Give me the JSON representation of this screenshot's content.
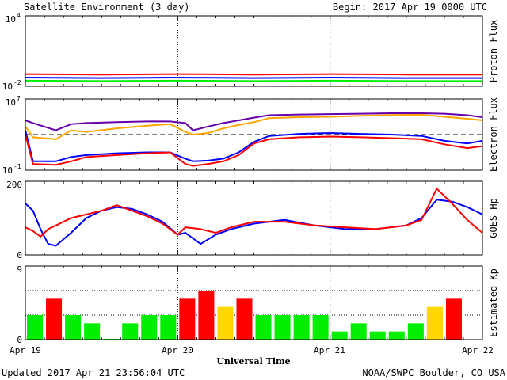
{
  "header": {
    "title": "Satellite Environment (3 day)",
    "begin": "Begin:  2017 Apr 19 0000 UTC"
  },
  "footer": {
    "updated": "Updated 2017 Apr 21 23:56:04 UTC",
    "credit": "NOAA/SWPC Boulder, CO USA"
  },
  "colors": {
    "red": "#ff0000",
    "blue": "#0000ff",
    "green": "#00ee00",
    "purple": "#6600aa",
    "orange": "#ffa500",
    "yellow": "#ffd700"
  },
  "chart_data": [
    {
      "type": "line",
      "ylabel": "Proton Flux",
      "yscale": "log",
      "ylim": [
        0.01,
        10000
      ],
      "yticks": [
        "10",
        "10"
      ],
      "ytick_exp": [
        "4",
        "-2"
      ],
      "threshold": 10,
      "xlim": [
        0,
        3
      ],
      "series": [
        {
          "color": "#ff0000",
          "x": [
            0,
            0.5,
            1,
            1.5,
            2,
            2.5,
            3
          ],
          "y": [
            0.11,
            0.1,
            0.11,
            0.1,
            0.11,
            0.1,
            0.1
          ]
        },
        {
          "color": "#0000ff",
          "x": [
            0,
            0.5,
            1,
            1.5,
            2,
            2.5,
            3
          ],
          "y": [
            0.055,
            0.05,
            0.055,
            0.05,
            0.055,
            0.05,
            0.05
          ]
        },
        {
          "color": "#00ee00",
          "x": [
            0,
            0.5,
            1,
            1.5,
            2,
            2.5,
            3
          ],
          "y": [
            0.03,
            0.028,
            0.03,
            0.028,
            0.03,
            0.028,
            0.028
          ]
        }
      ]
    },
    {
      "type": "line",
      "ylabel": "Electron Flux",
      "yscale": "log",
      "ylim": [
        0.1,
        10000000
      ],
      "yticks": [
        "10",
        "10"
      ],
      "ytick_exp": [
        "7",
        "-1"
      ],
      "threshold": 1000,
      "xlim": [
        0,
        3
      ],
      "series": [
        {
          "color": "#6600aa",
          "x": [
            0,
            0.05,
            0.2,
            0.3,
            0.4,
            0.6,
            0.8,
            0.95,
            1.05,
            1.1,
            1.2,
            1.3,
            1.4,
            1.5,
            1.6,
            1.8,
            2.0,
            2.2,
            2.4,
            2.6,
            2.75,
            2.9,
            3.0
          ],
          "y": [
            40000,
            20000,
            3000,
            15000,
            20000,
            25000,
            30000,
            30000,
            20000,
            3000,
            8000,
            20000,
            40000,
            80000,
            150000,
            180000,
            200000,
            220000,
            250000,
            250000,
            220000,
            150000,
            90000
          ]
        },
        {
          "color": "#ffa500",
          "x": [
            0,
            0.05,
            0.2,
            0.3,
            0.4,
            0.6,
            0.8,
            0.95,
            1.05,
            1.1,
            1.2,
            1.3,
            1.4,
            1.5,
            1.6,
            1.8,
            2.0,
            2.2,
            2.4,
            2.6,
            2.75,
            2.9,
            3.0
          ],
          "y": [
            8000,
            500,
            300,
            3000,
            2000,
            5000,
            10000,
            15000,
            2000,
            1000,
            1500,
            5000,
            12000,
            25000,
            70000,
            90000,
            100000,
            130000,
            160000,
            170000,
            100000,
            60000,
            40000
          ]
        },
        {
          "color": "#0000ff",
          "x": [
            0,
            0.05,
            0.2,
            0.3,
            0.4,
            0.6,
            0.8,
            0.95,
            1.05,
            1.1,
            1.2,
            1.3,
            1.4,
            1.5,
            1.6,
            1.8,
            2.0,
            2.2,
            2.4,
            2.6,
            2.75,
            2.9,
            3.0
          ],
          "y": [
            3000,
            1,
            1,
            3,
            5,
            8,
            10,
            10,
            2,
            1,
            1.2,
            2,
            10,
            150,
            700,
            1200,
            1500,
            1200,
            1000,
            700,
            200,
            100,
            200
          ]
        },
        {
          "color": "#ff0000",
          "x": [
            0,
            0.05,
            0.2,
            0.3,
            0.4,
            0.6,
            0.8,
            0.95,
            1.05,
            1.1,
            1.2,
            1.3,
            1.4,
            1.5,
            1.6,
            1.8,
            2.0,
            2.2,
            2.4,
            2.6,
            2.75,
            2.9,
            3.0
          ],
          "y": [
            1000,
            0.5,
            0.4,
            1,
            3,
            5,
            8,
            10,
            0.5,
            0.3,
            0.5,
            1,
            5,
            100,
            300,
            500,
            600,
            500,
            400,
            300,
            80,
            30,
            50
          ]
        }
      ]
    },
    {
      "type": "line",
      "ylabel": "GOES Hp",
      "ylim": [
        0,
        200
      ],
      "yticks": [
        "200",
        "0"
      ],
      "xlim": [
        0,
        3
      ],
      "series": [
        {
          "color": "#0000ff",
          "x": [
            0,
            0.05,
            0.1,
            0.15,
            0.2,
            0.3,
            0.4,
            0.5,
            0.6,
            0.7,
            0.8,
            0.9,
            1.0,
            1.05,
            1.15,
            1.25,
            1.35,
            1.5,
            1.7,
            1.9,
            2.1,
            2.3,
            2.5,
            2.6,
            2.7,
            2.8,
            2.9,
            3.0
          ],
          "y": [
            140,
            120,
            70,
            30,
            25,
            60,
            100,
            120,
            130,
            125,
            110,
            90,
            55,
            60,
            30,
            55,
            70,
            85,
            95,
            80,
            70,
            70,
            80,
            100,
            150,
            145,
            130,
            110
          ]
        },
        {
          "color": "#ff0000",
          "x": [
            0,
            0.05,
            0.1,
            0.15,
            0.2,
            0.3,
            0.4,
            0.5,
            0.6,
            0.7,
            0.8,
            0.9,
            1.0,
            1.05,
            1.15,
            1.25,
            1.35,
            1.5,
            1.7,
            1.9,
            2.1,
            2.3,
            2.5,
            2.6,
            2.7,
            2.8,
            2.9,
            3.0
          ],
          "y": [
            75,
            65,
            50,
            70,
            80,
            100,
            110,
            120,
            135,
            120,
            105,
            85,
            55,
            75,
            70,
            60,
            75,
            90,
            90,
            80,
            75,
            70,
            80,
            95,
            180,
            140,
            95,
            60
          ]
        }
      ]
    },
    {
      "type": "bar",
      "ylabel": "Estimated Kp",
      "ylim": [
        0,
        9
      ],
      "yticks": [
        "9",
        "0"
      ],
      "gridlines": [
        3,
        6
      ],
      "xlim": [
        0,
        3
      ],
      "bar_width_days": 0.125,
      "values": [
        3,
        5,
        3,
        2,
        0.1,
        2,
        3,
        3,
        5,
        6,
        4,
        5,
        3,
        3,
        3,
        3,
        1,
        2,
        1,
        1,
        2,
        4,
        5,
        0
      ],
      "colors": [
        "#00ee00",
        "#ff0000",
        "#00ee00",
        "#00ee00",
        "#00ee00",
        "#00ee00",
        "#00ee00",
        "#00ee00",
        "#ff0000",
        "#ff0000",
        "#ffd700",
        "#ff0000",
        "#00ee00",
        "#00ee00",
        "#00ee00",
        "#00ee00",
        "#00ee00",
        "#00ee00",
        "#00ee00",
        "#00ee00",
        "#00ee00",
        "#ffd700",
        "#ff0000",
        "#00ee00"
      ]
    }
  ],
  "xaxis": {
    "labels": [
      "Apr 19",
      "Apr 20",
      "Apr 21",
      "Apr 22"
    ],
    "title": "Universal Time"
  }
}
